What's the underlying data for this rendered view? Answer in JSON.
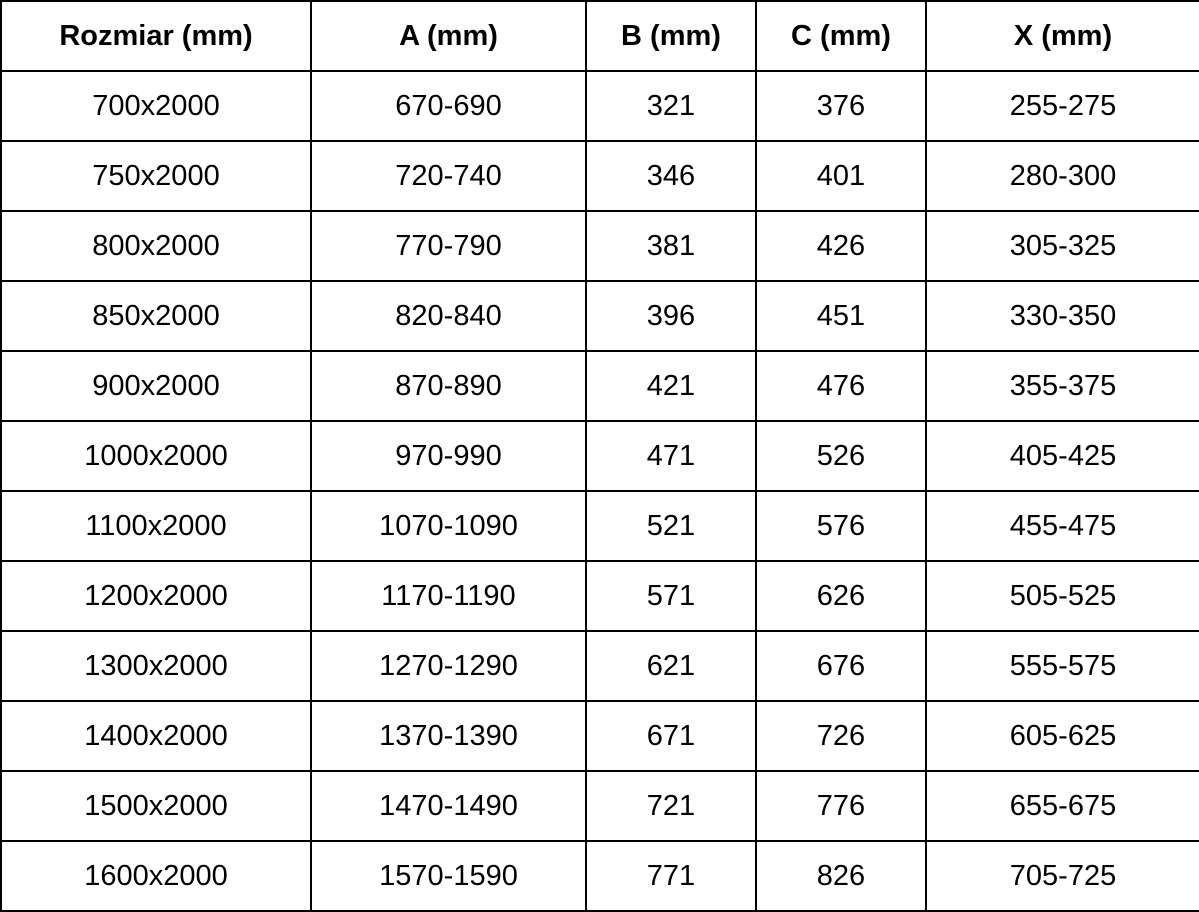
{
  "table": {
    "columns": [
      {
        "key": "rozmiar",
        "label": "Rozmiar (mm)"
      },
      {
        "key": "a",
        "label": "A (mm)"
      },
      {
        "key": "b",
        "label": "B (mm)"
      },
      {
        "key": "c",
        "label": "C (mm)"
      },
      {
        "key": "x",
        "label": "X (mm)"
      }
    ],
    "rows": [
      [
        "700x2000",
        "670-690",
        "321",
        "376",
        "255-275"
      ],
      [
        "750x2000",
        "720-740",
        "346",
        "401",
        "280-300"
      ],
      [
        "800x2000",
        "770-790",
        "381",
        "426",
        "305-325"
      ],
      [
        "850x2000",
        "820-840",
        "396",
        "451",
        "330-350"
      ],
      [
        "900x2000",
        "870-890",
        "421",
        "476",
        "355-375"
      ],
      [
        "1000x2000",
        "970-990",
        "471",
        "526",
        "405-425"
      ],
      [
        "1100x2000",
        "1070-1090",
        "521",
        "576",
        "455-475"
      ],
      [
        "1200x2000",
        "1170-1190",
        "571",
        "626",
        "505-525"
      ],
      [
        "1300x2000",
        "1270-1290",
        "621",
        "676",
        "555-575"
      ],
      [
        "1400x2000",
        "1370-1390",
        "671",
        "726",
        "605-625"
      ],
      [
        "1500x2000",
        "1470-1490",
        "721",
        "776",
        "655-675"
      ],
      [
        "1600x2000",
        "1570-1590",
        "771",
        "826",
        "705-725"
      ]
    ]
  },
  "chart_data": {
    "type": "table",
    "title": "",
    "columns": [
      "Rozmiar (mm)",
      "A (mm)",
      "B (mm)",
      "C (mm)",
      "X (mm)"
    ],
    "rows": [
      [
        "700x2000",
        "670-690",
        321,
        376,
        "255-275"
      ],
      [
        "750x2000",
        "720-740",
        346,
        401,
        "280-300"
      ],
      [
        "800x2000",
        "770-790",
        381,
        426,
        "305-325"
      ],
      [
        "850x2000",
        "820-840",
        396,
        451,
        "330-350"
      ],
      [
        "900x2000",
        "870-890",
        421,
        476,
        "355-375"
      ],
      [
        "1000x2000",
        "970-990",
        471,
        526,
        "405-425"
      ],
      [
        "1100x2000",
        "1070-1090",
        521,
        576,
        "455-475"
      ],
      [
        "1200x2000",
        "1170-1190",
        571,
        626,
        "505-525"
      ],
      [
        "1300x2000",
        "1270-1290",
        621,
        676,
        "555-575"
      ],
      [
        "1400x2000",
        "1370-1390",
        671,
        726,
        "605-625"
      ],
      [
        "1500x2000",
        "1470-1490",
        721,
        776,
        "655-675"
      ],
      [
        "1600x2000",
        "1570-1590",
        771,
        826,
        "705-725"
      ]
    ]
  },
  "colors": {
    "background": "#ffffff",
    "border": "#000000",
    "text": "#000000"
  }
}
